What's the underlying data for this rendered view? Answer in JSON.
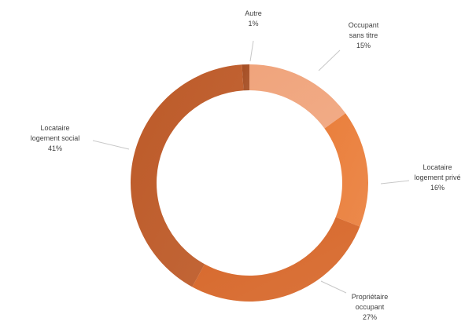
{
  "chart_data": {
    "type": "pie",
    "donut": true,
    "title": "",
    "slices": [
      {
        "name": "Occupant",
        "name_line2": "sans titre",
        "label": "15%",
        "value": 15,
        "color": "#f0a47c"
      },
      {
        "name": "Locataire",
        "name_line2": "logement privé",
        "label": "16%",
        "value": 16,
        "color": "#ea7f3c"
      },
      {
        "name": "Propriétaire",
        "name_line2": "occupant",
        "label": "27%",
        "value": 27,
        "color": "#d7682b"
      },
      {
        "name": "Locataire",
        "name_line2": "logement social",
        "label": "41%",
        "value": 41,
        "color": "#bd5a28"
      },
      {
        "name": "Autre",
        "name_line2": "",
        "label": "1%",
        "value": 1,
        "color": "#a54d22"
      }
    ],
    "start_angle_deg": 0,
    "direction": "clockwise",
    "legend": "none",
    "data_labels": "outside-with-leader-lines"
  }
}
